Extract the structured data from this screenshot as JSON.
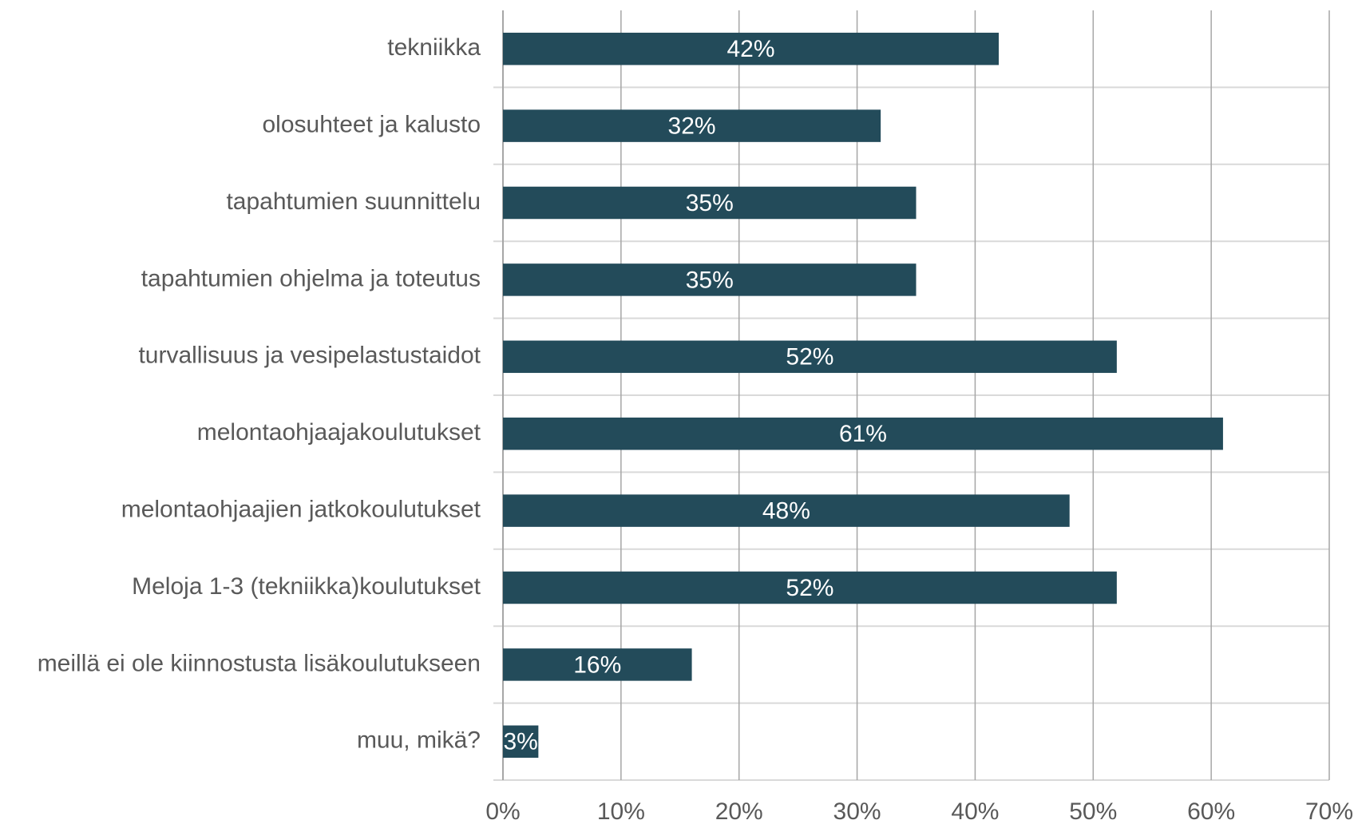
{
  "chart_data": {
    "type": "barh",
    "categories": [
      "tekniikka",
      "olosuhteet ja kalusto",
      "tapahtumien suunnittelu",
      "tapahtumien ohjelma ja toteutus",
      "turvallisuus ja vesipelastustaidot",
      "melontaohjaajakoulutukset",
      "melontaohjaajien jatkokoulutukset",
      "Meloja 1-3 (tekniikka)koulutukset",
      "meillä ei ole kiinnostusta lisäkoulutukseen",
      "muu, mikä?"
    ],
    "values": [
      42,
      32,
      35,
      35,
      52,
      61,
      48,
      52,
      16,
      3
    ],
    "value_labels": [
      "42%",
      "32%",
      "35%",
      "35%",
      "52%",
      "61%",
      "48%",
      "52%",
      "16%",
      "3%"
    ],
    "color": "#234b5a",
    "xlim": [
      0,
      70
    ],
    "xticks": [
      {
        "value": 0,
        "label": "0%"
      },
      {
        "value": 10,
        "label": "10%"
      },
      {
        "value": 20,
        "label": "20%"
      },
      {
        "value": 30,
        "label": "30%"
      },
      {
        "value": 40,
        "label": "40%"
      },
      {
        "value": 50,
        "label": "50%"
      },
      {
        "value": 60,
        "label": "60%"
      },
      {
        "value": 70,
        "label": "70%"
      }
    ],
    "grid": true
  }
}
